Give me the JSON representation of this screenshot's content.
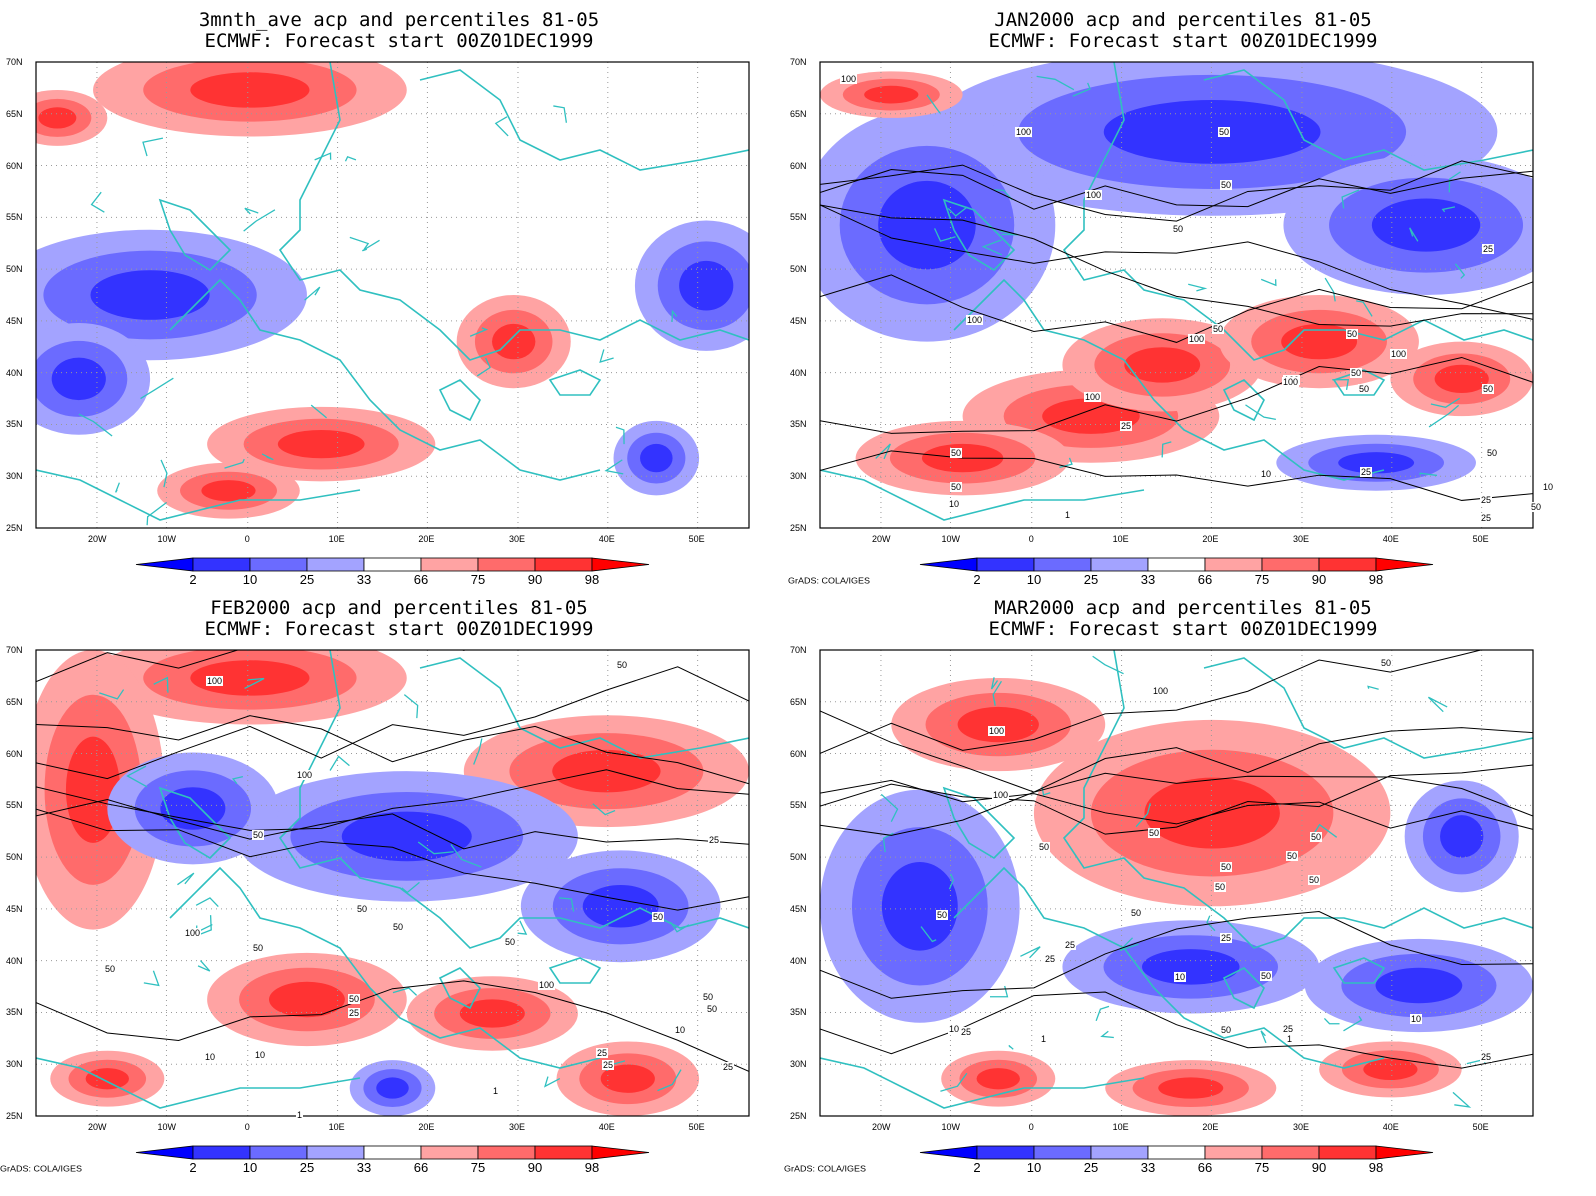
{
  "panels": [
    {
      "id": "p1",
      "title1": "3mnth_ave acp and percentiles 81-05",
      "title2": "ECMWF: Forecast start 00Z01DEC1999",
      "contour_labels": [],
      "credit": ""
    },
    {
      "id": "p2",
      "title1": "JAN2000 acp and percentiles 81-05",
      "title2": "ECMWF: Forecast start 00Z01DEC1999",
      "contour_labels": [
        "100",
        "100",
        "100",
        "50",
        "50",
        "50",
        "25",
        "100",
        "50",
        "100",
        "50",
        "100",
        "100",
        "50",
        "100",
        "50",
        "100",
        "50",
        "50",
        "25",
        "50",
        "10",
        "10",
        "25",
        "50",
        "25",
        "10",
        "25",
        "1",
        "50"
      ],
      "credit": "GrADS: COLA/IGES"
    },
    {
      "id": "p3",
      "title1": "FEB2000 acp and percentiles 81-05",
      "title2": "ECMWF: Forecast start 00Z01DEC1999",
      "contour_labels": [
        "100",
        "50",
        "100",
        "50",
        "25",
        "50",
        "50",
        "100",
        "50",
        "50",
        "50",
        "100",
        "50",
        "25",
        "10",
        "25",
        "10",
        "25",
        "50",
        "10",
        "50",
        "25",
        "1",
        "1",
        "50"
      ],
      "credit": "GrADS: COLA/IGES"
    },
    {
      "id": "p4",
      "title1": "MAR2000 acp and percentiles 81-05",
      "title2": "ECMWF: Forecast start 00Z01DEC1999",
      "contour_labels": [
        "50",
        "100",
        "100",
        "100",
        "50",
        "50",
        "50",
        "50",
        "50",
        "50",
        "50",
        "50",
        "25",
        "50",
        "25",
        "25",
        "50",
        "10",
        "10",
        "25",
        "1",
        "1",
        "10",
        "25",
        "25",
        "50"
      ],
      "credit": "GrADS: COLA/IGES"
    }
  ],
  "lat_labels": [
    "70N",
    "65N",
    "60N",
    "55N",
    "50N",
    "45N",
    "40N",
    "35N",
    "30N",
    "25N"
  ],
  "lon_labels": [
    "20W",
    "10W",
    "0",
    "10E",
    "20E",
    "30E",
    "40E",
    "50E"
  ],
  "colorbar": {
    "labels": [
      "2",
      "10",
      "25",
      "33",
      "66",
      "75",
      "90",
      "98"
    ],
    "colors": [
      "#0000ff",
      "#3333ff",
      "#6b6bff",
      "#a3a3ff",
      "#ffffff",
      "#ffa3a3",
      "#ff6b6b",
      "#ff3333",
      "#ff0000"
    ]
  },
  "colors": {
    "coast": "#30c0c0",
    "contour": "#000000",
    "frame": "#000000"
  }
}
